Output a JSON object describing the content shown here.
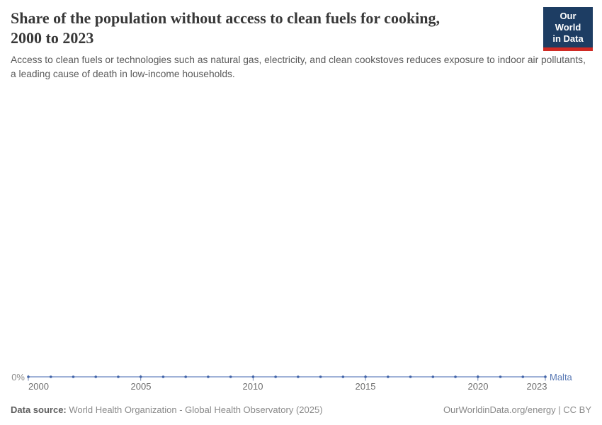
{
  "header": {
    "title_line1": "Share of the population without access to clean fuels for cooking,",
    "title_line2": "2000 to 2023",
    "subtitle": "Access to clean fuels or technologies such as natural gas, electricity, and clean cookstoves reduces exposure to indoor air pollutants, a leading cause of death in low-income households.",
    "logo": {
      "line1": "Our World",
      "line2": "in Data",
      "bg_color": "#1d3d63",
      "bar_color": "#cf2a24",
      "text_color": "#ffffff"
    }
  },
  "chart_data": {
    "type": "line",
    "title": "Share of the population without access to clean fuels for cooking, 2000 to 2023",
    "xlabel": "",
    "ylabel": "",
    "unit": "%",
    "grid": false,
    "legend_position": "line-end",
    "x": [
      2000,
      2001,
      2002,
      2003,
      2004,
      2005,
      2006,
      2007,
      2008,
      2009,
      2010,
      2011,
      2012,
      2013,
      2014,
      2015,
      2016,
      2017,
      2018,
      2019,
      2020,
      2021,
      2022,
      2023
    ],
    "series": [
      {
        "name": "Malta",
        "color": "#5878b4",
        "values": [
          0,
          0,
          0,
          0,
          0,
          0,
          0,
          0,
          0,
          0,
          0,
          0,
          0,
          0,
          0,
          0,
          0,
          0,
          0,
          0,
          0,
          0,
          0,
          0
        ]
      }
    ],
    "x_tick_labels": [
      "2000",
      "2005",
      "2010",
      "2015",
      "2020",
      "2023"
    ],
    "y_tick_labels": [
      "0%"
    ],
    "ylim": [
      0,
      null
    ],
    "colors": {
      "line": "#8099ca",
      "dot": "#4466aa",
      "tick": "#7285ad",
      "x_axis_label": "#6e6e6e",
      "y_axis_label": "#8b8b8b"
    }
  },
  "footer": {
    "datasource_label": "Data source:",
    "datasource_text": "World Health Organization - Global Health Observatory (2025)",
    "attribution": "OurWorldinData.org/energy | CC BY"
  }
}
